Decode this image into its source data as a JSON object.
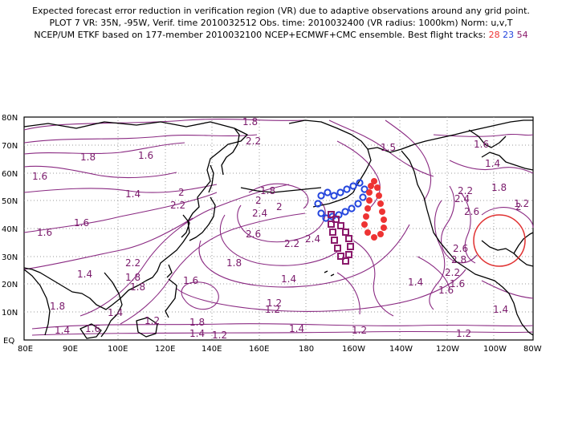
{
  "header": {
    "line1": "Expected forecast error reduction in verification region (VR) due to adaptive observations around any grid point.",
    "line2": "PLOT 7 VR: 35N, -95W, Verif. time 2010032512 Obs. time: 2010032400 (VR radius: 1000km) Norm: u,v,T",
    "line3_prefix": "NCEP/UM ETKF based on 177-member 2010032100 NCEP+ECMWF+CMC ensemble. Best flight tracks:",
    "track_a": "28",
    "track_b": "23",
    "track_c": "54"
  },
  "axes": {
    "lat_labels": [
      "80N",
      "70N",
      "60N",
      "50N",
      "40N",
      "30N",
      "20N",
      "10N",
      "EQ"
    ],
    "lon_labels": [
      "80E",
      "90E",
      "100E",
      "120E",
      "140E",
      "160E",
      "180",
      "160W",
      "140W",
      "120W",
      "100W",
      "80W"
    ]
  },
  "contour_labels": [
    "1.8",
    "2.2",
    "1.6",
    "1.6",
    "1.8",
    "1.4",
    "2",
    "2.2",
    "1.8",
    "2",
    "2.4",
    "2",
    "2.6",
    "2.2",
    "2.4",
    "1.5",
    "1.6",
    "1.4",
    "1.8",
    "2.4",
    "2.6",
    "2.8",
    "2.2",
    "2.2",
    "2.6",
    "1.6",
    "1.6",
    "1.6",
    "2.2",
    "1.8",
    "1.8",
    "1.4",
    "1.4",
    "1.6",
    "1.8",
    "1.8",
    "1.8",
    "1.4",
    "1.2",
    "1.6",
    "1.4",
    "1.2",
    "1.6",
    "1.2",
    "1.4",
    "1.2",
    "1.4",
    "1.4",
    "1.2",
    "1.4",
    "1.2",
    "1.2",
    "2"
  ],
  "colors": {
    "contour": "#8a2a82",
    "track_red": "#ee3333",
    "track_blue": "#2244dd",
    "track_purple": "#8b1a6b",
    "verification_circle": "#e03030"
  }
}
